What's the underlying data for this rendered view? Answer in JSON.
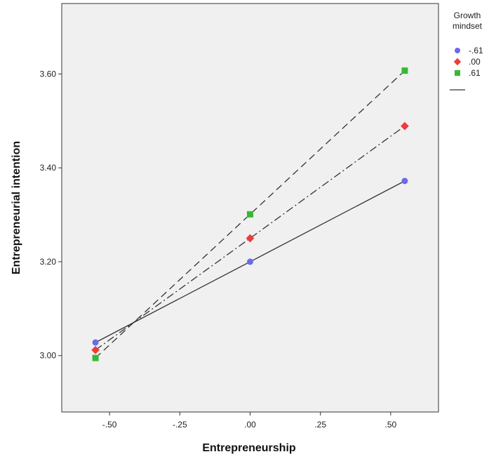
{
  "chart_data": {
    "type": "line",
    "xlabel": "Entrepreneurship",
    "ylabel": "Entrepreneurial intention",
    "xlim": [
      -0.67,
      0.67
    ],
    "ylim": [
      2.88,
      3.75
    ],
    "x_ticks": [
      -0.5,
      -0.25,
      0.0,
      0.25,
      0.5
    ],
    "x_tick_labels": [
      "-.50",
      "-.25",
      ".00",
      ".25",
      ".50"
    ],
    "y_ticks": [
      3.0,
      3.2,
      3.4,
      3.6
    ],
    "y_tick_labels": [
      "3.00",
      "3.20",
      "3.40",
      "3.60"
    ],
    "grid": false,
    "legend": {
      "title": "Growth mindset",
      "title_lines": [
        "Growth",
        "mindset"
      ],
      "placement": "outside-right",
      "entries": [
        {
          "label": "-.61",
          "color": "#6a6af0",
          "marker": "circle"
        },
        {
          "label": ".00",
          "color": "#ee3b3b",
          "marker": "diamond"
        },
        {
          "label": ".61",
          "color": "#33bb33",
          "marker": "square"
        }
      ]
    },
    "series": [
      {
        "name": "-.61",
        "color": "#6a6af0",
        "marker": "circle",
        "line_style": "solid",
        "x": [
          -0.55,
          0.0,
          0.55
        ],
        "y": [
          3.028,
          3.2,
          3.372
        ]
      },
      {
        "name": ".00",
        "color": "#ee3b3b",
        "marker": "diamond",
        "line_style": "dash-dot",
        "x": [
          -0.55,
          0.0,
          0.55
        ],
        "y": [
          3.012,
          3.25,
          3.489
        ]
      },
      {
        "name": ".61",
        "color": "#33bb33",
        "marker": "square",
        "line_style": "dashed",
        "x": [
          -0.55,
          0.0,
          0.55
        ],
        "y": [
          2.995,
          3.301,
          3.607
        ]
      }
    ],
    "plot_background": "#f0f0f0",
    "line_color": "#333333"
  }
}
